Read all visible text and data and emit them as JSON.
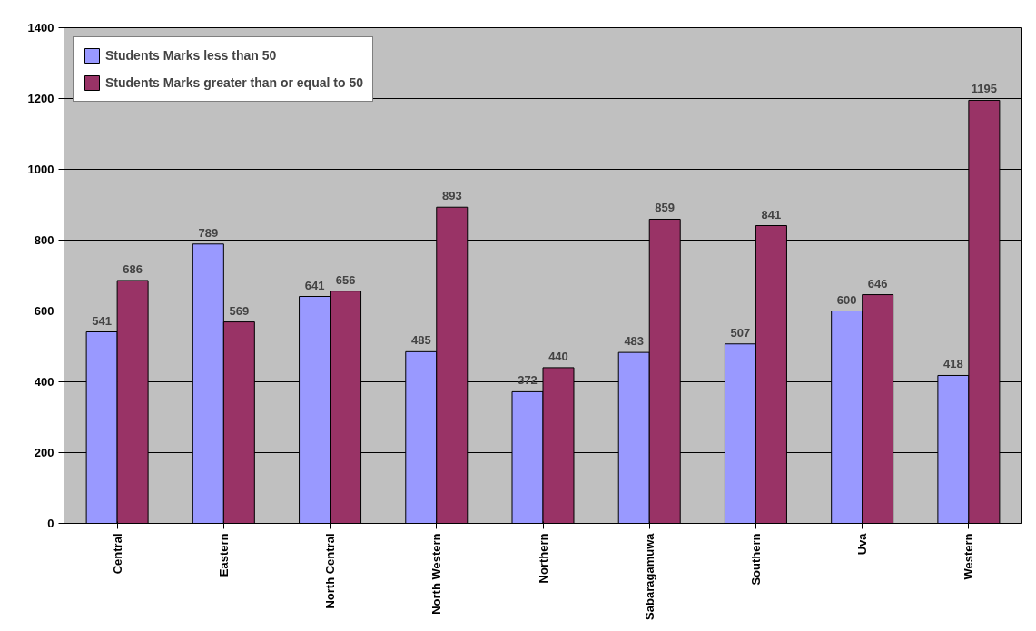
{
  "chart_data": {
    "type": "bar",
    "categories": [
      "Central",
      "Eastern",
      "North Central",
      "North Western",
      "Northern",
      "Sabaragamuwa",
      "Southern",
      "Uva",
      "Western"
    ],
    "series": [
      {
        "name": "Students Marks less than 50",
        "color": "#9999ff",
        "values": [
          541,
          789,
          641,
          485,
          372,
          483,
          507,
          600,
          418
        ]
      },
      {
        "name": "Students Marks greater than or equal to 50",
        "color": "#993366",
        "values": [
          686,
          569,
          656,
          893,
          440,
          859,
          841,
          646,
          1195
        ]
      }
    ],
    "ylim": [
      0,
      1400
    ],
    "yticks": [
      0,
      200,
      400,
      600,
      800,
      1000,
      1200,
      1400
    ],
    "grid": "y",
    "legend": "top left",
    "data_labels": true
  }
}
